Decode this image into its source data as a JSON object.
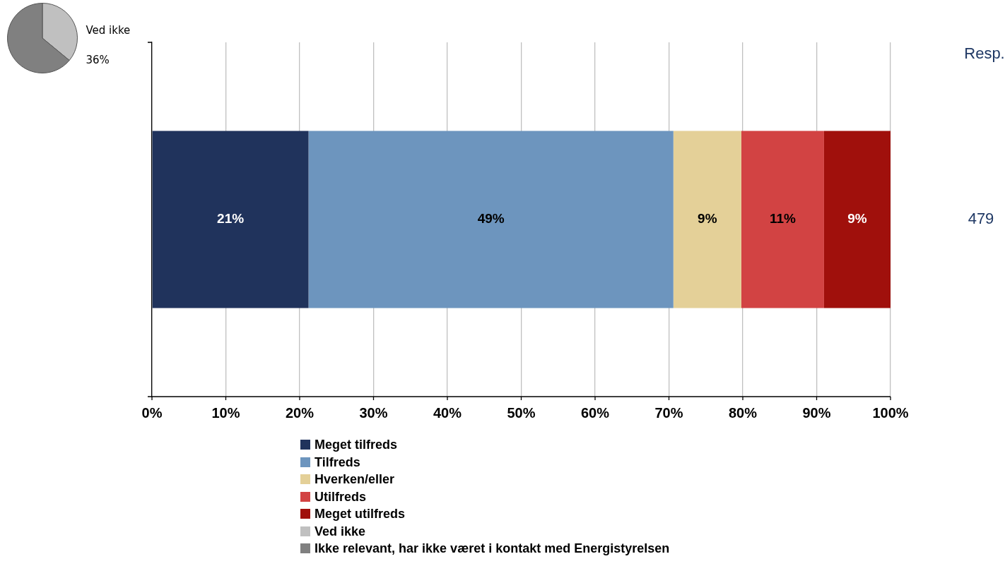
{
  "chart_data": [
    {
      "type": "pie",
      "categories": [
        "Ved ikke",
        null
      ],
      "values": [
        36,
        64
      ],
      "colors": [
        "#c0c0c0",
        "#808080"
      ],
      "value_labels": [
        "36%",
        null
      ],
      "legend": false
    },
    {
      "type": "bar",
      "orientation": "horizontal",
      "stacked": true,
      "categories": [
        null
      ],
      "xlim": [
        0,
        100
      ],
      "xticks": [
        {
          "value": 0,
          "label": "0%"
        },
        {
          "value": 10,
          "label": "10%"
        },
        {
          "value": 20,
          "label": "20%"
        },
        {
          "value": 30,
          "label": "30%"
        },
        {
          "value": 40,
          "label": "40%"
        },
        {
          "value": 50,
          "label": "50%"
        },
        {
          "value": 60,
          "label": "60%"
        },
        {
          "value": 70,
          "label": "70%"
        },
        {
          "value": 80,
          "label": "80%"
        },
        {
          "value": 90,
          "label": "90%"
        },
        {
          "value": 100,
          "label": "100%"
        }
      ],
      "grid": "x",
      "legend": "bottom",
      "series": [
        {
          "name": "Meget tilfreds",
          "color": "#20335c",
          "values": [
            21.2
          ],
          "value_labels": [
            "21%"
          ]
        },
        {
          "name": "Tilfreds",
          "color": "#6d95be",
          "values": [
            49.4
          ],
          "value_labels": [
            "49%"
          ]
        },
        {
          "name": "Hverken/eller",
          "color": "#e4d098",
          "values": [
            9.2
          ],
          "value_labels": [
            "9%"
          ]
        },
        {
          "name": "Utilfreds",
          "color": "#d24343",
          "values": [
            11.2
          ],
          "value_labels": [
            "11%"
          ]
        },
        {
          "name": "Meget utilfreds",
          "color": "#a0100c",
          "values": [
            9
          ],
          "value_labels": [
            "9%"
          ]
        },
        {
          "name": "Ved ikke",
          "color": "#c0c0c0",
          "values": [
            null
          ]
        },
        {
          "name": "Ikke relevant, har ikke været i kontakt med Energistyrelsen",
          "color": "#808080",
          "values": [
            null
          ]
        }
      ],
      "annotations": [
        "Resp.",
        "479"
      ]
    }
  ]
}
